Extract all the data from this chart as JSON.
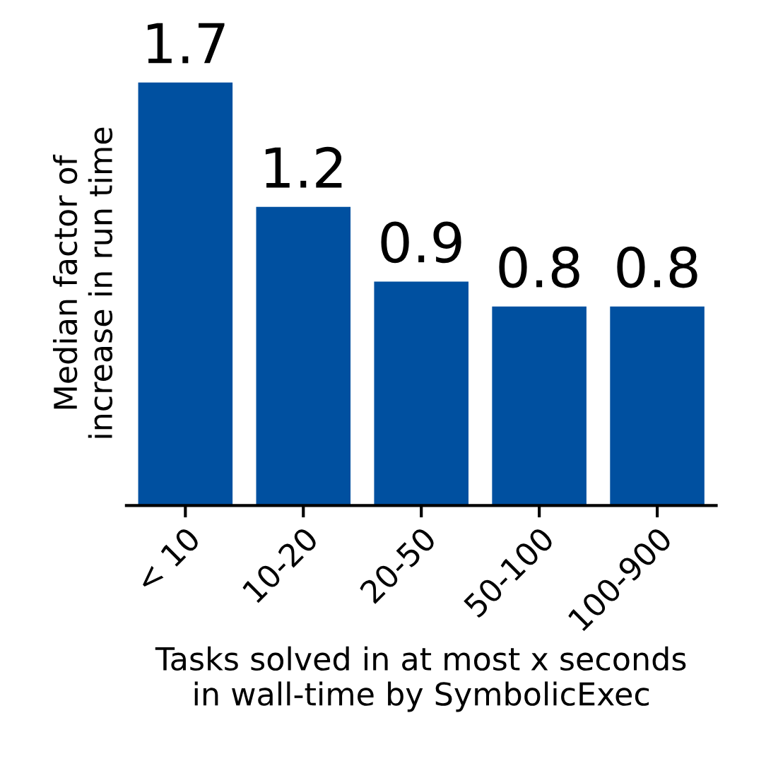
{
  "chart_data": {
    "type": "bar",
    "xlabel": "Tasks solved in at most x seconds\nin wall-time by SymbolicExec",
    "ylabel": "Median factor of\nincrease in run time",
    "categories": [
      "< 10",
      "10-20",
      "20-50",
      "50-100",
      "100-900"
    ],
    "values": [
      1.7,
      1.2,
      0.9,
      0.8,
      0.8
    ],
    "color": "#0050a0",
    "data_labels": true,
    "tick_labels": "x",
    "grid": false
  }
}
